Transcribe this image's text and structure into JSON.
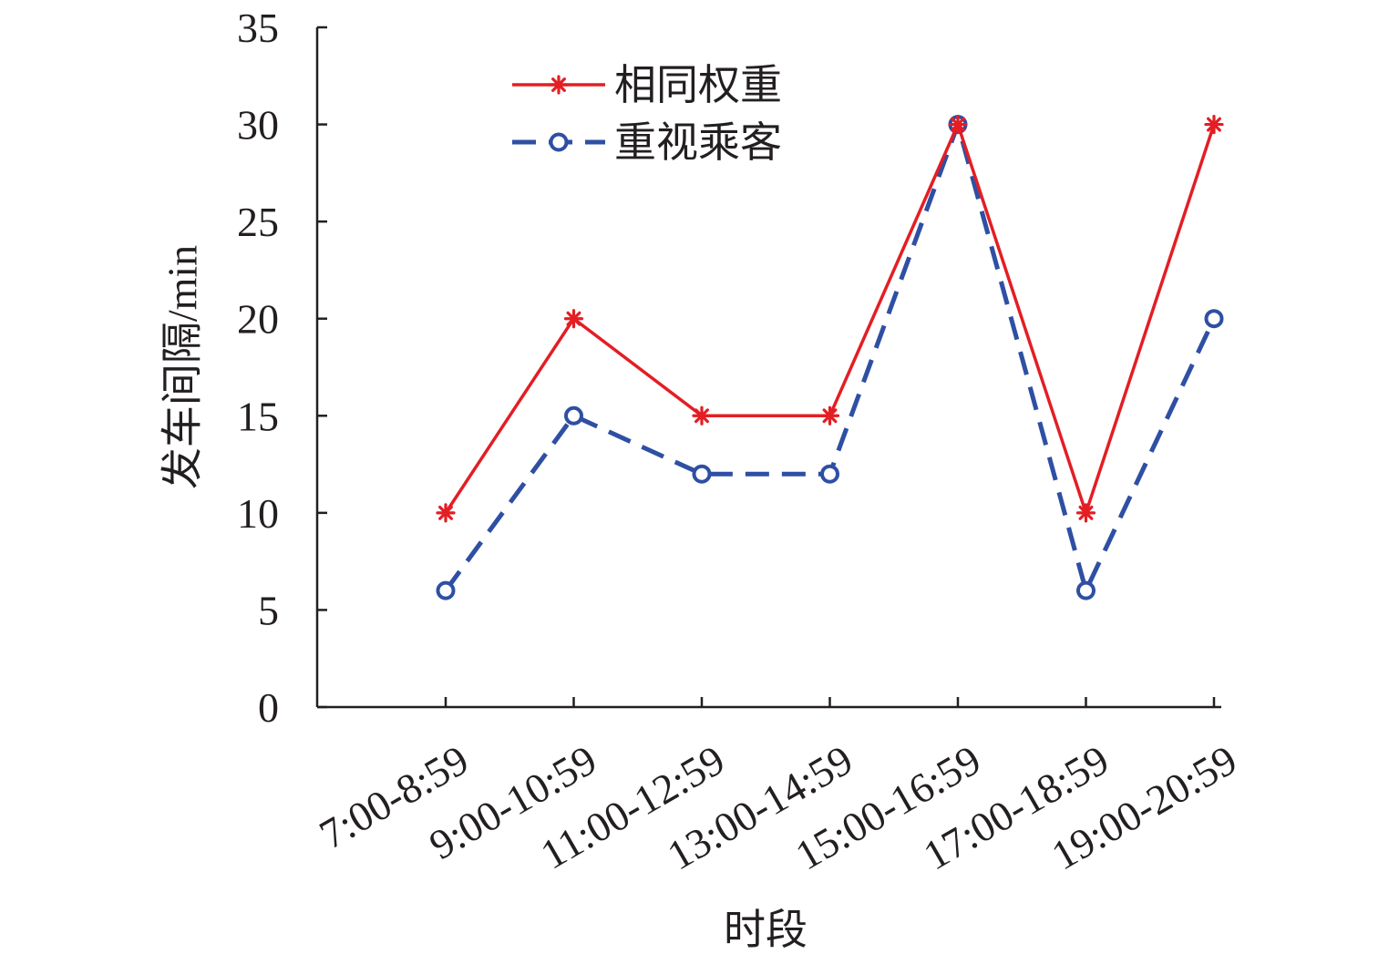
{
  "chart_data": {
    "type": "line",
    "categories": [
      "7:00-8:59",
      "9:00-10:59",
      "11:00-12:59",
      "13:00-14:59",
      "15:00-16:59",
      "17:00-18:59",
      "19:00-20:59"
    ],
    "series": [
      {
        "name": "相同权重",
        "values": [
          10,
          20,
          15,
          15,
          30,
          10,
          30
        ],
        "color": "#e31e24",
        "line_style": "solid",
        "marker": "asterisk"
      },
      {
        "name": "重视乘客",
        "values": [
          6,
          15,
          12,
          12,
          30,
          6,
          20
        ],
        "color": "#2e4fa3",
        "line_style": "dashed",
        "marker": "open-circle"
      }
    ],
    "xlabel": "时段",
    "ylabel": "发车间隔/min",
    "ylim": [
      0,
      35
    ],
    "yticks": [
      0,
      5,
      10,
      15,
      20,
      25,
      30,
      35
    ],
    "grid": false,
    "legend_position": "top-left"
  }
}
